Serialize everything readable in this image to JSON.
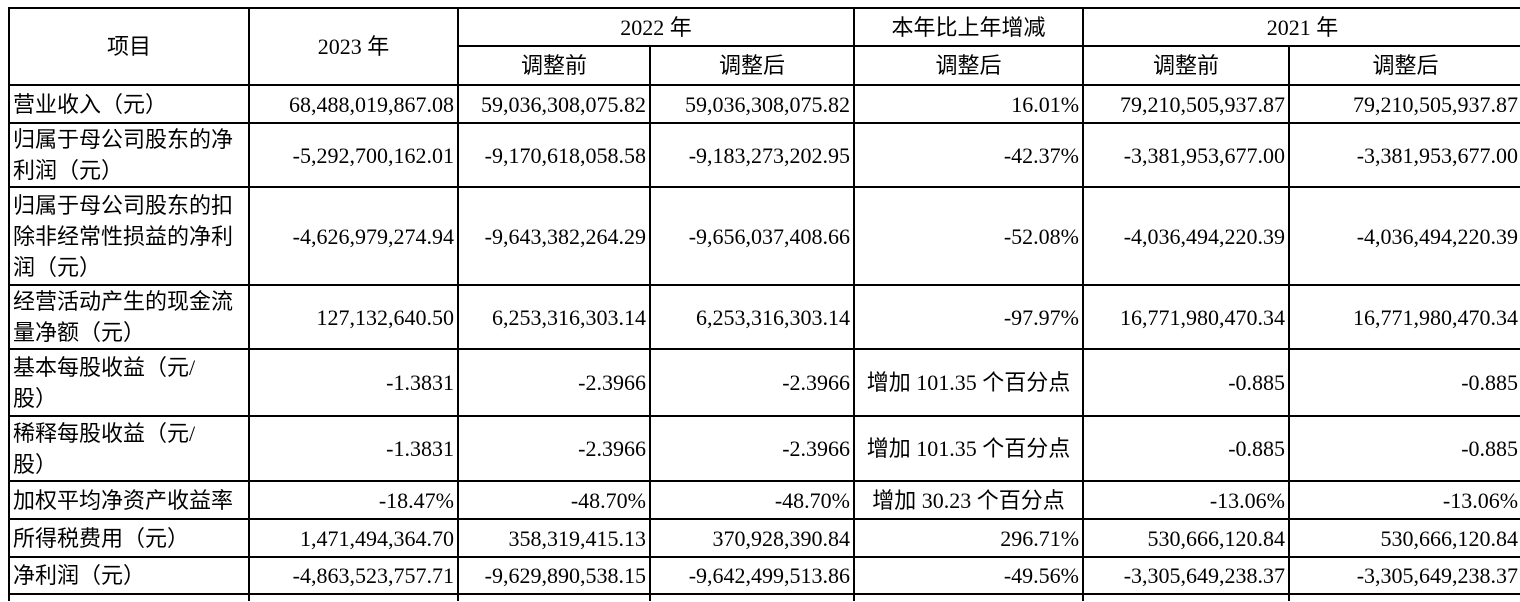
{
  "page": {
    "background": "#ffffff",
    "text_color": "#000000",
    "border_color": "#000000"
  },
  "table": {
    "header": {
      "item": "项目",
      "y2023": "2023 年",
      "y2022": "2022 年",
      "change": "本年比上年增减",
      "y2021": "2021 年",
      "adj_before": "调整前",
      "adj_after": "调整后"
    },
    "rows": [
      {
        "label": "营业收入（元）",
        "y2023": "68,488,019,867.08",
        "y2022_before": "59,036,308,075.82",
        "y2022_after": "59,036,308,075.82",
        "change_after": "16.01%",
        "y2021_before": "79,210,505,937.87",
        "y2021_after": "79,210,505,937.87",
        "change_align": "right"
      },
      {
        "label": "归属于母公司股东的净\n利润（元）",
        "y2023": "-5,292,700,162.01",
        "y2022_before": "-9,170,618,058.58",
        "y2022_after": "-9,183,273,202.95",
        "change_after": "-42.37%",
        "y2021_before": "-3,381,953,677.00",
        "y2021_after": "-3,381,953,677.00",
        "change_align": "right"
      },
      {
        "label": "归属于母公司股东的扣\n除非经常性损益的净利\n润（元）",
        "y2023": "-4,626,979,274.94",
        "y2022_before": "-9,643,382,264.29",
        "y2022_after": "-9,656,037,408.66",
        "change_after": "-52.08%",
        "y2021_before": "-4,036,494,220.39",
        "y2021_after": "-4,036,494,220.39",
        "change_align": "right"
      },
      {
        "label": "经营活动产生的现金流\n量净额（元）",
        "y2023": "127,132,640.50",
        "y2022_before": "6,253,316,303.14",
        "y2022_after": "6,253,316,303.14",
        "change_after": "-97.97%",
        "y2021_before": "16,771,980,470.34",
        "y2021_after": "16,771,980,470.34",
        "change_align": "right"
      },
      {
        "label": "基本每股收益（元/\n股）",
        "y2023": "-1.3831",
        "y2022_before": "-2.3966",
        "y2022_after": "-2.3966",
        "change_after": "增加 101.35 个百分点",
        "y2021_before": "-0.885",
        "y2021_after": "-0.885",
        "change_align": "center"
      },
      {
        "label": "稀释每股收益（元/\n股）",
        "y2023": "-1.3831",
        "y2022_before": "-2.3966",
        "y2022_after": "-2.3966",
        "change_after": "增加 101.35 个百分点",
        "y2021_before": "-0.885",
        "y2021_after": "-0.885",
        "change_align": "center"
      },
      {
        "label": "加权平均净资产收益率",
        "y2023": "-18.47%",
        "y2022_before": "-48.70%",
        "y2022_after": "-48.70%",
        "change_after": "增加 30.23 个百分点",
        "y2021_before": "-13.06%",
        "y2021_after": "-13.06%",
        "change_align": "center"
      },
      {
        "label": "所得税费用（元）",
        "y2023": "1,471,494,364.70",
        "y2022_before": "358,319,415.13",
        "y2022_after": "370,928,390.84",
        "change_after": "296.71%",
        "y2021_before": "530,666,120.84",
        "y2021_after": "530,666,120.84",
        "change_align": "right"
      },
      {
        "label": "净利润（元）",
        "y2023": "-4,863,523,757.71",
        "y2022_before": "-9,629,890,538.15",
        "y2022_after": "-9,642,499,513.86",
        "change_after": "-49.56%",
        "y2021_before": "-3,305,649,238.37",
        "y2021_after": "-3,305,649,238.37",
        "change_align": "right"
      }
    ]
  }
}
